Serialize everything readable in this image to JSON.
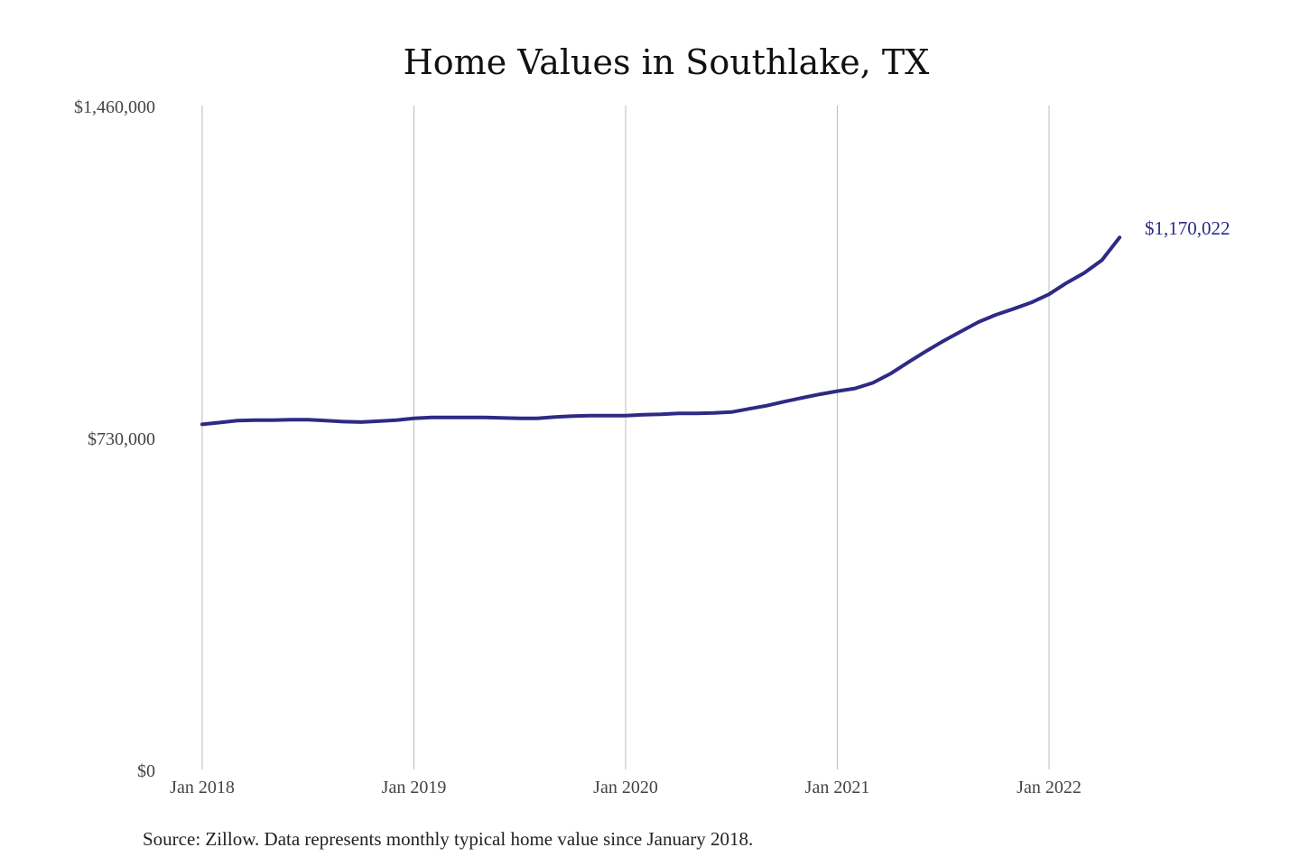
{
  "chart_data": {
    "type": "line",
    "title": "Home Values in Southlake, TX",
    "xlabel": "",
    "ylabel": "",
    "ylim": [
      0,
      1460000
    ],
    "y_ticks": [
      {
        "value": 0,
        "label": "$0"
      },
      {
        "value": 730000,
        "label": "$730,000"
      },
      {
        "value": 1460000,
        "label": "$1,460,000"
      }
    ],
    "x_ticks": [
      {
        "value": 0,
        "label": "Jan 2018"
      },
      {
        "value": 12,
        "label": "Jan 2019"
      },
      {
        "value": 24,
        "label": "Jan 2020"
      },
      {
        "value": 36,
        "label": "Jan 2021"
      },
      {
        "value": 48,
        "label": "Jan 2022"
      }
    ],
    "grid": {
      "vertical": true,
      "horizontal": false
    },
    "legend": "none",
    "series": [
      {
        "color": "#2e2a85",
        "x": [
          "2018-01",
          "2018-02",
          "2018-03",
          "2018-04",
          "2018-05",
          "2018-06",
          "2018-07",
          "2018-08",
          "2018-09",
          "2018-10",
          "2018-11",
          "2018-12",
          "2019-01",
          "2019-02",
          "2019-03",
          "2019-04",
          "2019-05",
          "2019-06",
          "2019-07",
          "2019-08",
          "2019-09",
          "2019-10",
          "2019-11",
          "2019-12",
          "2020-01",
          "2020-02",
          "2020-03",
          "2020-04",
          "2020-05",
          "2020-06",
          "2020-07",
          "2020-08",
          "2020-09",
          "2020-10",
          "2020-11",
          "2020-12",
          "2021-01",
          "2021-02",
          "2021-03",
          "2021-04",
          "2021-05",
          "2021-06",
          "2021-07",
          "2021-08",
          "2021-09",
          "2021-10",
          "2021-11",
          "2021-12",
          "2022-01",
          "2022-02",
          "2022-03",
          "2022-04",
          "2022-05"
        ],
        "values": [
          759000,
          763000,
          767000,
          768000,
          768000,
          769000,
          769000,
          767000,
          765000,
          764000,
          766000,
          768000,
          772000,
          774000,
          774000,
          774000,
          774000,
          773000,
          772000,
          772000,
          775000,
          777000,
          778000,
          778000,
          778000,
          780000,
          781000,
          783000,
          783000,
          784000,
          786000,
          793000,
          800000,
          809000,
          817000,
          825000,
          832000,
          838000,
          850000,
          870000,
          895000,
          919000,
          942000,
          963000,
          984000,
          1000000,
          1013000,
          1027000,
          1045000,
          1070000,
          1092000,
          1120000,
          1170022
        ]
      }
    ],
    "end_label": "$1,170,022",
    "source": "Source: Zillow. Data represents monthly typical home value since January 2018."
  }
}
